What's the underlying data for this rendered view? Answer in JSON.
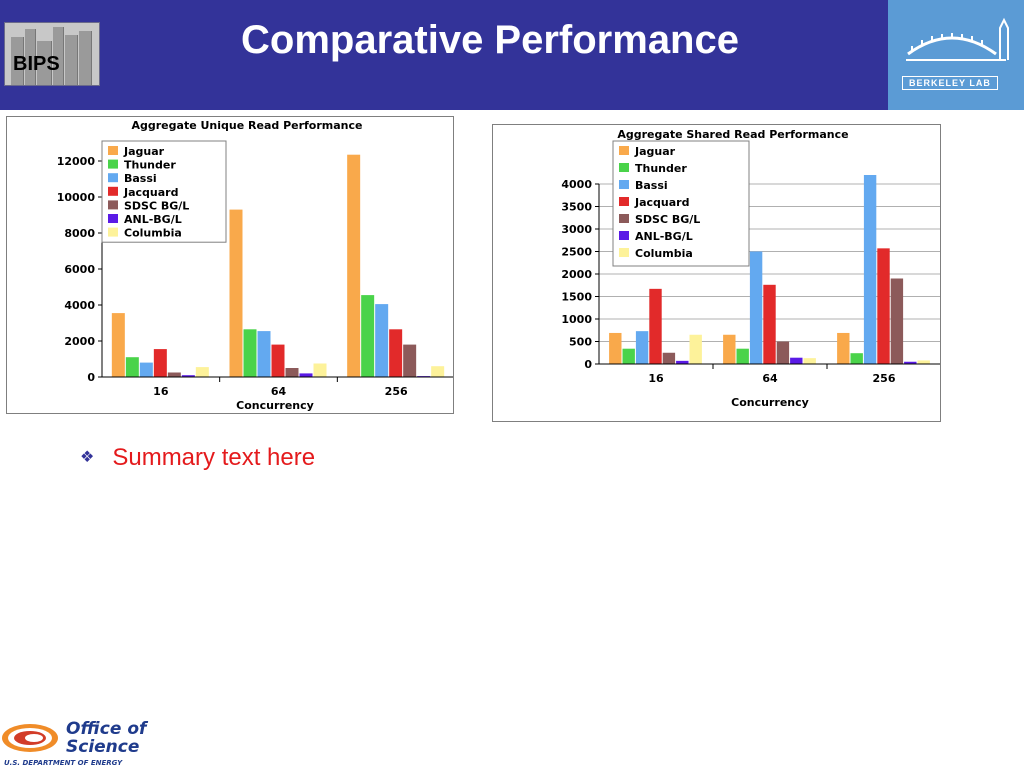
{
  "header": {
    "title": "Comparative Performance",
    "bips_label": "BIPS",
    "berkeley_label": "BERKELEY LAB"
  },
  "summary": {
    "text": "Summary text here"
  },
  "footer": {
    "office_line1": "Office of",
    "office_line2": "Science",
    "doe_line": "U.S. DEPARTMENT OF ENERGY"
  },
  "colors": {
    "header_bg": "#333399",
    "summary_text": "#e41a1c"
  },
  "chart_data": [
    {
      "type": "bar",
      "title": "Aggregate Unique Read Performance",
      "xlabel": "Concurrency",
      "ylabel": "",
      "categories": [
        "16",
        "64",
        "256"
      ],
      "ylim": [
        0,
        12000
      ],
      "yticks": [
        0,
        2000,
        4000,
        6000,
        8000,
        10000,
        12000
      ],
      "grid": false,
      "legend": "top-left",
      "series": [
        {
          "name": "Jaguar",
          "color": "#f9a94b",
          "values": [
            3550,
            9300,
            12350
          ]
        },
        {
          "name": "Thunder",
          "color": "#4ad34a",
          "values": [
            1100,
            2650,
            4550
          ]
        },
        {
          "name": "Bassi",
          "color": "#63a9f0",
          "values": [
            800,
            2550,
            4050
          ]
        },
        {
          "name": "Jacquard",
          "color": "#e22a2a",
          "values": [
            1550,
            1800,
            2650
          ]
        },
        {
          "name": "SDSC BG/L",
          "color": "#8c5a5a",
          "values": [
            250,
            500,
            1800
          ]
        },
        {
          "name": "ANL-BG/L",
          "color": "#5a1ae6",
          "values": [
            100,
            200,
            50
          ]
        },
        {
          "name": "Columbia",
          "color": "#fdf29a",
          "values": [
            550,
            750,
            600
          ]
        }
      ]
    },
    {
      "type": "bar",
      "title": "Aggregate Shared Read Performance",
      "xlabel": "Concurrency",
      "ylabel": "",
      "categories": [
        "16",
        "64",
        "256"
      ],
      "ylim": [
        0,
        4000
      ],
      "yticks": [
        0,
        500,
        1000,
        1500,
        2000,
        2500,
        3000,
        3500,
        4000
      ],
      "grid": true,
      "legend": "top-left",
      "series": [
        {
          "name": "Jaguar",
          "color": "#f9a94b",
          "values": [
            690,
            650,
            690
          ]
        },
        {
          "name": "Thunder",
          "color": "#4ad34a",
          "values": [
            340,
            340,
            240
          ]
        },
        {
          "name": "Bassi",
          "color": "#63a9f0",
          "values": [
            730,
            2500,
            4200
          ]
        },
        {
          "name": "Jacquard",
          "color": "#e22a2a",
          "values": [
            1670,
            1760,
            2570
          ]
        },
        {
          "name": "SDSC BG/L",
          "color": "#8c5a5a",
          "values": [
            250,
            500,
            1900
          ]
        },
        {
          "name": "ANL-BG/L",
          "color": "#5a1ae6",
          "values": [
            70,
            140,
            50
          ]
        },
        {
          "name": "Columbia",
          "color": "#fdf29a",
          "values": [
            650,
            130,
            80
          ]
        }
      ]
    }
  ]
}
